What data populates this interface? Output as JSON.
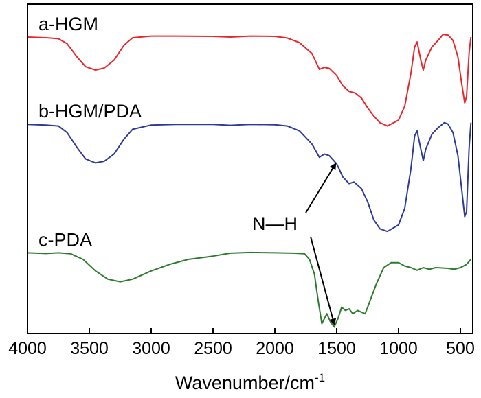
{
  "chart_data": {
    "type": "line",
    "title": "",
    "xlabel": "Wavenumber/cm",
    "xlabel_superscript": "-1",
    "ylabel": "",
    "xlim": [
      4000,
      400
    ],
    "x_reversed": true,
    "ylim": [
      0,
      1
    ],
    "y_ticks_shown": false,
    "grid": false,
    "x_ticks": [
      4000,
      3500,
      3000,
      2500,
      2000,
      1500,
      1000,
      500
    ],
    "series": [
      {
        "name": "a-HGM",
        "color": "#e8262b",
        "points": [
          [
            4000,
            0.9
          ],
          [
            3850,
            0.898
          ],
          [
            3750,
            0.895
          ],
          [
            3680,
            0.88
          ],
          [
            3600,
            0.84
          ],
          [
            3530,
            0.81
          ],
          [
            3450,
            0.8
          ],
          [
            3380,
            0.806
          ],
          [
            3300,
            0.83
          ],
          [
            3220,
            0.875
          ],
          [
            3150,
            0.898
          ],
          [
            3000,
            0.903
          ],
          [
            2800,
            0.903
          ],
          [
            2500,
            0.902
          ],
          [
            2360,
            0.9
          ],
          [
            2200,
            0.903
          ],
          [
            2000,
            0.902
          ],
          [
            1900,
            0.897
          ],
          [
            1800,
            0.883
          ],
          [
            1700,
            0.85
          ],
          [
            1640,
            0.802
          ],
          [
            1600,
            0.808
          ],
          [
            1560,
            0.805
          ],
          [
            1500,
            0.783
          ],
          [
            1450,
            0.752
          ],
          [
            1400,
            0.735
          ],
          [
            1350,
            0.73
          ],
          [
            1300,
            0.715
          ],
          [
            1250,
            0.685
          ],
          [
            1200,
            0.66
          ],
          [
            1150,
            0.64
          ],
          [
            1090,
            0.63
          ],
          [
            1000,
            0.648
          ],
          [
            950,
            0.69
          ],
          [
            900,
            0.79
          ],
          [
            870,
            0.87
          ],
          [
            850,
            0.885
          ],
          [
            820,
            0.83
          ],
          [
            800,
            0.8
          ],
          [
            780,
            0.83
          ],
          [
            730,
            0.87
          ],
          [
            680,
            0.89
          ],
          [
            640,
            0.908
          ],
          [
            600,
            0.906
          ],
          [
            560,
            0.89
          ],
          [
            520,
            0.84
          ],
          [
            490,
            0.76
          ],
          [
            465,
            0.7
          ],
          [
            450,
            0.72
          ],
          [
            430,
            0.85
          ],
          [
            415,
            0.9
          ]
        ]
      },
      {
        "name": "b-HGM/PDA",
        "color": "#2e3a98",
        "points": [
          [
            4000,
            0.635
          ],
          [
            3850,
            0.633
          ],
          [
            3750,
            0.63
          ],
          [
            3680,
            0.61
          ],
          [
            3600,
            0.565
          ],
          [
            3530,
            0.53
          ],
          [
            3450,
            0.518
          ],
          [
            3380,
            0.523
          ],
          [
            3300,
            0.545
          ],
          [
            3220,
            0.59
          ],
          [
            3150,
            0.62
          ],
          [
            3000,
            0.633
          ],
          [
            2800,
            0.635
          ],
          [
            2500,
            0.635
          ],
          [
            2360,
            0.632
          ],
          [
            2200,
            0.635
          ],
          [
            2000,
            0.634
          ],
          [
            1900,
            0.63
          ],
          [
            1800,
            0.615
          ],
          [
            1700,
            0.575
          ],
          [
            1640,
            0.535
          ],
          [
            1600,
            0.545
          ],
          [
            1560,
            0.54
          ],
          [
            1500,
            0.515
          ],
          [
            1450,
            0.475
          ],
          [
            1400,
            0.455
          ],
          [
            1360,
            0.46
          ],
          [
            1300,
            0.44
          ],
          [
            1250,
            0.4
          ],
          [
            1200,
            0.345
          ],
          [
            1150,
            0.318
          ],
          [
            1090,
            0.31
          ],
          [
            1000,
            0.33
          ],
          [
            950,
            0.38
          ],
          [
            900,
            0.5
          ],
          [
            870,
            0.6
          ],
          [
            850,
            0.615
          ],
          [
            820,
            0.56
          ],
          [
            800,
            0.525
          ],
          [
            780,
            0.56
          ],
          [
            730,
            0.605
          ],
          [
            680,
            0.625
          ],
          [
            630,
            0.64
          ],
          [
            600,
            0.636
          ],
          [
            560,
            0.61
          ],
          [
            520,
            0.54
          ],
          [
            490,
            0.44
          ],
          [
            465,
            0.355
          ],
          [
            450,
            0.37
          ],
          [
            430,
            0.56
          ],
          [
            415,
            0.64
          ]
        ]
      },
      {
        "name": "c-PDA",
        "color": "#2e7a2e",
        "points": [
          [
            4000,
            0.245
          ],
          [
            3850,
            0.243
          ],
          [
            3750,
            0.245
          ],
          [
            3650,
            0.242
          ],
          [
            3550,
            0.225
          ],
          [
            3450,
            0.19
          ],
          [
            3350,
            0.165
          ],
          [
            3250,
            0.157
          ],
          [
            3150,
            0.165
          ],
          [
            3000,
            0.19
          ],
          [
            2850,
            0.21
          ],
          [
            2700,
            0.225
          ],
          [
            2500,
            0.235
          ],
          [
            2360,
            0.244
          ],
          [
            2200,
            0.246
          ],
          [
            2000,
            0.245
          ],
          [
            1850,
            0.244
          ],
          [
            1760,
            0.242
          ],
          [
            1720,
            0.225
          ],
          [
            1680,
            0.18
          ],
          [
            1650,
            0.1
          ],
          [
            1620,
            0.03
          ],
          [
            1600,
            0.045
          ],
          [
            1580,
            0.06
          ],
          [
            1550,
            0.035
          ],
          [
            1520,
            0.02
          ],
          [
            1490,
            0.045
          ],
          [
            1460,
            0.08
          ],
          [
            1430,
            0.07
          ],
          [
            1400,
            0.075
          ],
          [
            1370,
            0.06
          ],
          [
            1330,
            0.07
          ],
          [
            1300,
            0.065
          ],
          [
            1270,
            0.06
          ],
          [
            1230,
            0.1
          ],
          [
            1180,
            0.15
          ],
          [
            1120,
            0.2
          ],
          [
            1060,
            0.215
          ],
          [
            1000,
            0.215
          ],
          [
            950,
            0.205
          ],
          [
            900,
            0.2
          ],
          [
            850,
            0.192
          ],
          [
            800,
            0.2
          ],
          [
            750,
            0.195
          ],
          [
            700,
            0.2
          ],
          [
            600,
            0.198
          ],
          [
            550,
            0.195
          ],
          [
            500,
            0.2
          ],
          [
            450,
            0.21
          ],
          [
            415,
            0.225
          ]
        ]
      }
    ],
    "annotations": [
      {
        "text": "N—H",
        "arrows_to": [
          {
            "series": "b-HGM/PDA",
            "x": 1510
          },
          {
            "series": "c-PDA",
            "x": 1520
          }
        ]
      }
    ]
  }
}
